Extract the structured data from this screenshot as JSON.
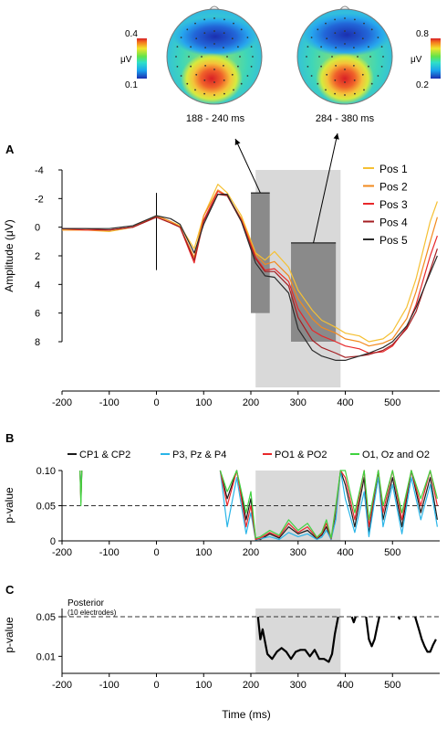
{
  "chart_data": [
    {
      "panel": "topomaps",
      "type": "heatmap",
      "maps": [
        {
          "window_label": "188 - 240 ms",
          "colorbar_max": "0.4",
          "colorbar_min": "0.1",
          "unit": "μV"
        },
        {
          "window_label": "284 - 380 ms",
          "colorbar_max": "0.8",
          "colorbar_min": "0.2",
          "unit": "μV"
        }
      ]
    },
    {
      "panel": "A",
      "type": "line",
      "ylabel": "Amplitude (μV)",
      "y_inverted": true,
      "ylim": [
        -4,
        8
      ],
      "y_ticks": [
        "-4",
        "-2",
        "0",
        "2",
        "4",
        "6",
        "8"
      ],
      "xlim": [
        -200,
        600
      ],
      "x_ticks": [
        "-200",
        "-100",
        "0",
        "100",
        "200",
        "300",
        "400",
        "500"
      ],
      "shaded_window": [
        210,
        390
      ],
      "mean_bars": [
        {
          "x_range": [
            200,
            240
          ],
          "value": 6.0,
          "top": -2.4
        },
        {
          "x_range": [
            285,
            380
          ],
          "value": 8.0,
          "top": 1.1
        }
      ],
      "legend_position": "top-right",
      "series": [
        {
          "name": "Pos 1",
          "color": "#f5c033",
          "x": [
            -200,
            -150,
            -100,
            -50,
            0,
            30,
            50,
            80,
            100,
            130,
            150,
            180,
            210,
            230,
            250,
            280,
            300,
            330,
            350,
            380,
            400,
            430,
            450,
            480,
            500,
            530,
            550,
            580,
            595
          ],
          "y": [
            0.2,
            0.2,
            0.3,
            0,
            -0.8,
            -0.4,
            -0.1,
            1.5,
            -0.8,
            -3.0,
            -2.4,
            -0.8,
            1.8,
            2.3,
            1.7,
            2.8,
            4.4,
            5.8,
            6.5,
            7.0,
            7.4,
            7.6,
            8.0,
            7.8,
            7.3,
            5.6,
            3.6,
            -0.4,
            -1.8
          ]
        },
        {
          "name": "Pos 2",
          "color": "#f28a1e",
          "x": [
            -200,
            -150,
            -100,
            -50,
            0,
            30,
            50,
            80,
            100,
            130,
            150,
            180,
            210,
            230,
            250,
            280,
            300,
            330,
            350,
            380,
            400,
            430,
            450,
            480,
            500,
            530,
            550,
            580,
            595
          ],
          "y": [
            0.2,
            0.2,
            0.2,
            0,
            -0.8,
            -0.4,
            0,
            2.1,
            -0.8,
            -2.6,
            -2.2,
            -0.6,
            1.9,
            2.6,
            2.4,
            3.4,
            5.0,
            6.4,
            7.0,
            7.4,
            7.8,
            8.0,
            8.3,
            8.1,
            7.8,
            6.4,
            4.5,
            1.0,
            -0.7
          ]
        },
        {
          "name": "Pos 3",
          "color": "#e8282a",
          "x": [
            -200,
            -150,
            -100,
            -50,
            0,
            30,
            50,
            80,
            100,
            130,
            150,
            180,
            210,
            230,
            250,
            280,
            300,
            330,
            350,
            380,
            400,
            430,
            450,
            480,
            500,
            530,
            550,
            580,
            595
          ],
          "y": [
            0.1,
            0.2,
            0.2,
            0,
            -0.7,
            -0.3,
            0,
            2.5,
            -0.5,
            -2.5,
            -2.2,
            -0.5,
            2.1,
            3.0,
            2.9,
            3.8,
            5.7,
            7.2,
            7.6,
            8.0,
            8.3,
            8.5,
            8.8,
            8.7,
            8.3,
            7.0,
            5.4,
            2.0,
            0.6
          ]
        },
        {
          "name": "Pos 4",
          "color": "#a41e22",
          "x": [
            -200,
            -150,
            -100,
            -50,
            0,
            30,
            50,
            80,
            100,
            130,
            150,
            180,
            210,
            230,
            250,
            280,
            300,
            330,
            350,
            380,
            400,
            430,
            450,
            480,
            500,
            530,
            550,
            580,
            595
          ],
          "y": [
            0.1,
            0.1,
            0.2,
            0,
            -0.7,
            -0.3,
            0,
            2.3,
            -0.4,
            -2.3,
            -2.2,
            -0.4,
            2.2,
            3.1,
            3.1,
            4.1,
            6.3,
            7.9,
            8.4,
            8.8,
            9.1,
            9.0,
            8.9,
            8.6,
            8.2,
            7.1,
            5.9,
            3.0,
            1.5
          ]
        },
        {
          "name": "Pos 5",
          "color": "#2b2b2b",
          "x": [
            -200,
            -150,
            -100,
            -50,
            0,
            30,
            50,
            80,
            100,
            130,
            150,
            180,
            210,
            230,
            250,
            280,
            300,
            330,
            350,
            380,
            400,
            430,
            450,
            480,
            500,
            530,
            550,
            580,
            595
          ],
          "y": [
            0.1,
            0.1,
            0.1,
            -0.1,
            -0.8,
            -0.6,
            -0.2,
            1.8,
            -0.2,
            -2.3,
            -2.3,
            -0.4,
            2.5,
            3.4,
            3.5,
            4.6,
            7.1,
            8.6,
            9.0,
            9.3,
            9.3,
            9.0,
            8.8,
            8.4,
            8.0,
            6.9,
            5.6,
            3.2,
            2.0
          ]
        }
      ]
    },
    {
      "panel": "B",
      "type": "line",
      "ylabel": "p-value",
      "ylim": [
        0,
        0.1
      ],
      "y_ticks": [
        "0.10",
        "0.05",
        "0"
      ],
      "xlim": [
        -200,
        600
      ],
      "x_ticks": [
        "-200",
        "-100",
        "0",
        "100",
        "200",
        "300",
        "400",
        "500"
      ],
      "threshold": 0.05,
      "shaded_window": [
        210,
        390
      ],
      "legend_position": "top",
      "series": [
        {
          "name": "CP1 & CP2",
          "color": "#1a1a1a",
          "x": [
            -162,
            -160,
            -158,
            135,
            150,
            170,
            190,
            200,
            210,
            220,
            240,
            260,
            280,
            300,
            320,
            340,
            350,
            360,
            370,
            380,
            390,
            400,
            420,
            440,
            450,
            470,
            480,
            500,
            520,
            540,
            560,
            580,
            595
          ],
          "y": [
            0.1,
            0.06,
            0.1,
            0.1,
            0.06,
            0.1,
            0.03,
            0.06,
            0.003,
            0.002,
            0.01,
            0.004,
            0.02,
            0.01,
            0.015,
            0.003,
            0.008,
            0.02,
            0.002,
            0.04,
            0.1,
            0.08,
            0.02,
            0.09,
            0.01,
            0.1,
            0.03,
            0.09,
            0.02,
            0.1,
            0.04,
            0.09,
            0.03
          ]
        },
        {
          "name": "P3, Pz & P4",
          "color": "#29b5e8",
          "x": [
            -162,
            -160,
            -158,
            135,
            150,
            170,
            190,
            200,
            210,
            220,
            240,
            260,
            280,
            300,
            320,
            340,
            350,
            360,
            370,
            380,
            390,
            400,
            420,
            440,
            450,
            470,
            480,
            500,
            520,
            540,
            560,
            580,
            595
          ],
          "y": [
            0.1,
            0.07,
            0.1,
            0.1,
            0.02,
            0.09,
            0.01,
            0.04,
            0.001,
            0.003,
            0.006,
            0.002,
            0.012,
            0.006,
            0.01,
            0.002,
            0.005,
            0.015,
            0.002,
            0.03,
            0.1,
            0.06,
            0.012,
            0.07,
            0.006,
            0.09,
            0.02,
            0.08,
            0.01,
            0.09,
            0.03,
            0.08,
            0.02
          ]
        },
        {
          "name": "PO1 & PO2",
          "color": "#e8282a",
          "x": [
            -162,
            -160,
            -158,
            135,
            150,
            170,
            190,
            200,
            210,
            220,
            240,
            260,
            280,
            300,
            320,
            340,
            350,
            360,
            370,
            380,
            390,
            400,
            420,
            440,
            450,
            470,
            480,
            500,
            520,
            540,
            560,
            580,
            595
          ],
          "y": [
            0.1,
            0.055,
            0.1,
            0.1,
            0.05,
            0.1,
            0.02,
            0.05,
            0.002,
            0.004,
            0.012,
            0.006,
            0.025,
            0.012,
            0.02,
            0.004,
            0.01,
            0.025,
            0.003,
            0.045,
            0.1,
            0.09,
            0.03,
            0.1,
            0.02,
            0.1,
            0.04,
            0.1,
            0.03,
            0.1,
            0.05,
            0.1,
            0.05
          ]
        },
        {
          "name": "O1, Oz and O2",
          "color": "#3fd33f",
          "x": [
            -162,
            -160,
            -158,
            135,
            150,
            170,
            190,
            200,
            210,
            220,
            240,
            260,
            280,
            300,
            320,
            340,
            350,
            360,
            370,
            380,
            390,
            400,
            420,
            440,
            450,
            470,
            480,
            500,
            520,
            540,
            560,
            580,
            595
          ],
          "y": [
            0.1,
            0.05,
            0.1,
            0.1,
            0.07,
            0.1,
            0.04,
            0.07,
            0.004,
            0.006,
            0.015,
            0.008,
            0.03,
            0.015,
            0.025,
            0.005,
            0.012,
            0.03,
            0.004,
            0.05,
            0.1,
            0.1,
            0.04,
            0.1,
            0.03,
            0.1,
            0.05,
            0.1,
            0.04,
            0.1,
            0.06,
            0.1,
            0.06
          ]
        }
      ]
    },
    {
      "panel": "C",
      "type": "line",
      "ylabel": "p-value",
      "xlabel": "Time (ms)",
      "annotation": "Posterior",
      "annotation_sub": "(10 electrodes)",
      "ylim": [
        0.005,
        0.07
      ],
      "y_ticks": [
        "0.05",
        "0.01"
      ],
      "xlim": [
        -200,
        600
      ],
      "x_ticks": [
        "-200",
        "-100",
        "0",
        "100",
        "200",
        "300",
        "400",
        "500"
      ],
      "threshold": 0.05,
      "shaded_window": [
        210,
        390
      ],
      "series": [
        {
          "name": "Posterior",
          "color": "#000000",
          "x": [
            215,
            220,
            225,
            235,
            245,
            255,
            265,
            275,
            285,
            295,
            305,
            315,
            325,
            335,
            345,
            355,
            365,
            372,
            378,
            385
          ],
          "y": [
            0.05,
            0.02,
            0.03,
            0.011,
            0.009,
            0.012,
            0.014,
            0.012,
            0.009,
            0.012,
            0.013,
            0.013,
            0.01,
            0.013,
            0.009,
            0.009,
            0.008,
            0.011,
            0.025,
            0.05
          ]
        },
        {
          "name": "",
          "color": "#000000",
          "x": [
            414,
            418,
            422
          ],
          "y": [
            0.05,
            0.04,
            0.05
          ]
        },
        {
          "name": "",
          "color": "#000000",
          "x": [
            444,
            450,
            456,
            462,
            468,
            472
          ],
          "y": [
            0.05,
            0.02,
            0.015,
            0.02,
            0.035,
            0.05
          ]
        },
        {
          "name": "",
          "color": "#000000",
          "x": [
            512,
            516
          ],
          "y": [
            0.05,
            0.045
          ]
        },
        {
          "name": "",
          "color": "#000000",
          "x": [
            548,
            556,
            562,
            568,
            574,
            580,
            586,
            592
          ],
          "y": [
            0.05,
            0.03,
            0.02,
            0.015,
            0.012,
            0.012,
            0.016,
            0.02
          ]
        }
      ]
    }
  ],
  "panel_letters": {
    "a": "A",
    "b": "B",
    "c": "C"
  }
}
